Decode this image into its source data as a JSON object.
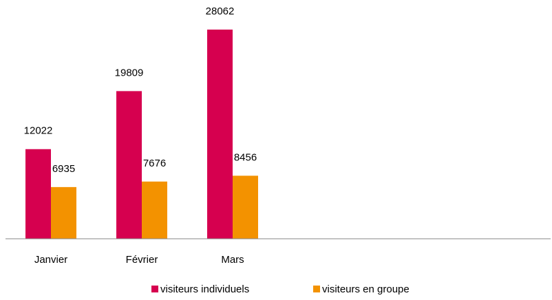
{
  "chart_data": {
    "type": "bar",
    "categories": [
      "Janvier",
      "Février",
      "Mars",
      null,
      null,
      null
    ],
    "series": [
      {
        "name": "visiteurs individuels",
        "color": "#d6004f",
        "values": [
          12022,
          19809,
          28062,
          null,
          null,
          null
        ]
      },
      {
        "name": "visiteurs en groupe",
        "color": "#f39200",
        "values": [
          6935,
          7676,
          8456,
          null,
          null,
          null
        ]
      }
    ],
    "ylim": [
      0,
      30000
    ],
    "legend": "bottom"
  }
}
